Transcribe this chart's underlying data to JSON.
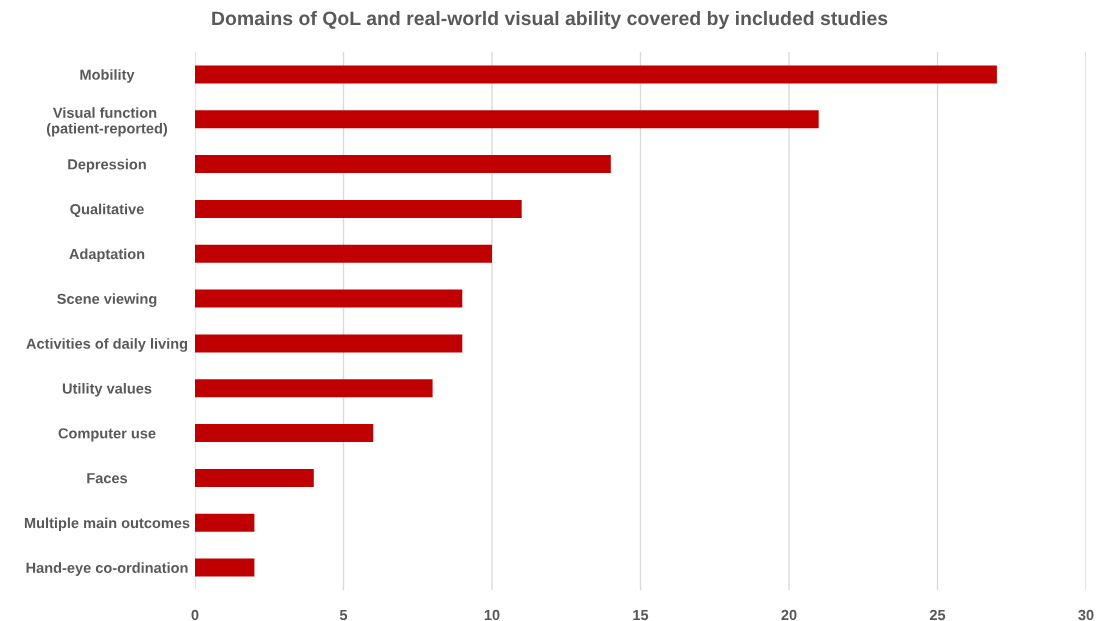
{
  "chart_data": {
    "type": "bar",
    "orientation": "horizontal",
    "title": "Domains of QoL and real-world visual ability covered by included studies",
    "categories": [
      "Mobility",
      "Visual function \n(patient-reported)",
      "Depression",
      "Qualitative",
      "Adaptation",
      "Scene viewing",
      "Activities of daily living",
      "Utility values",
      "Computer use",
      "Faces",
      "Multiple main outcomes",
      "Hand-eye co-ordination"
    ],
    "values": [
      27,
      21,
      14,
      11,
      10,
      9,
      9,
      8,
      6,
      4,
      2,
      2
    ],
    "color": "#c00000",
    "xlim": [
      0,
      30
    ],
    "xticks": [
      0,
      5,
      10,
      15,
      20,
      25,
      30
    ],
    "grid": "x"
  }
}
